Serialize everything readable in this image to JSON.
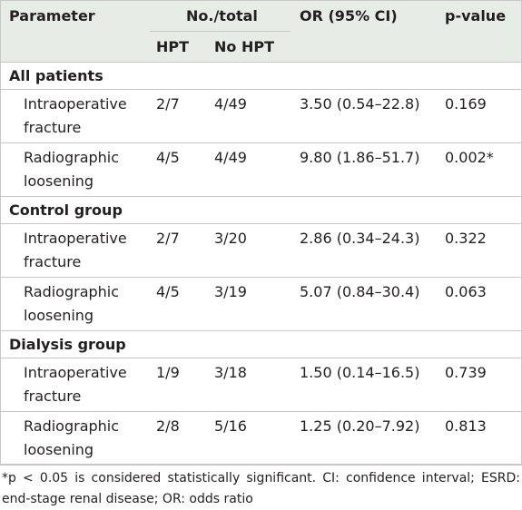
{
  "header": {
    "parameter": "Parameter",
    "count": "No./total",
    "or": "OR (95% CI)",
    "p": "p-value",
    "hpt": "HPT",
    "nohpt": "No HPT"
  },
  "groups": [
    {
      "label": "All patients",
      "rows": [
        {
          "parameter": "Intraoperative fracture",
          "hpt": "2/7",
          "nohpt": "4/49",
          "or": "3.50 (0.54–22.8)",
          "p": "0.169"
        },
        {
          "parameter": "Radiographic loosening",
          "hpt": "4/5",
          "nohpt": "4/49",
          "or": "9.80 (1.86–51.7)",
          "p": "0.002*"
        }
      ]
    },
    {
      "label": "Control group",
      "rows": [
        {
          "parameter": "Intraoperative fracture",
          "hpt": "2/7",
          "nohpt": "3/20",
          "or": "2.86 (0.34–24.3)",
          "p": "0.322"
        },
        {
          "parameter": "Radiographic loosening",
          "hpt": "4/5",
          "nohpt": "3/19",
          "or": "5.07 (0.84–30.4)",
          "p": "0.063"
        }
      ]
    },
    {
      "label": "Dialysis group",
      "rows": [
        {
          "parameter": "Intraoperative fracture",
          "hpt": "1/9",
          "nohpt": "3/18",
          "or": "1.50 (0.14–16.5)",
          "p": "0.739"
        },
        {
          "parameter": "Radiographic loosening",
          "hpt": "2/8",
          "nohpt": "5/16",
          "or": "1.25 (0.20–7.92)",
          "p": "0.813"
        }
      ]
    }
  ],
  "footnote": "*p < 0.05 is considered statistically significant. CI: confidence interval; ESRD: end-stage renal disease; OR: odds ratio"
}
